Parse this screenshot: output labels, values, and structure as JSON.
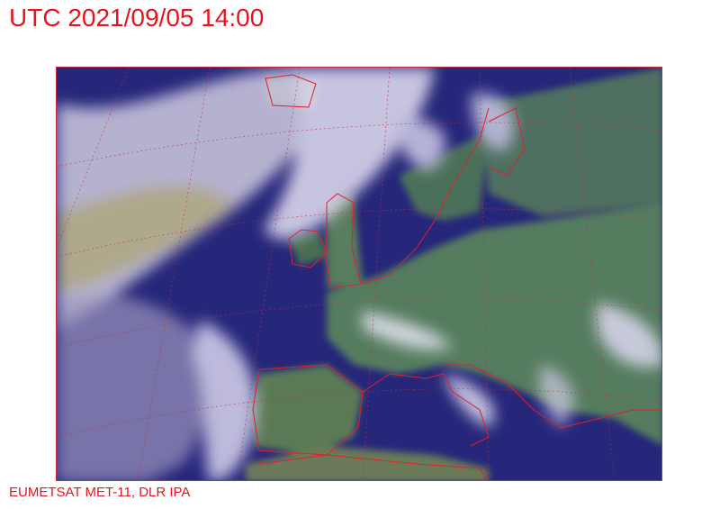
{
  "header": {
    "title": "UTC 2021/09/05 14:00"
  },
  "footer": {
    "credit": "EUMETSAT MET-11, DLR IPA"
  },
  "map": {
    "kind": "satellite-composite",
    "region": "Europe and North Atlantic",
    "colors": {
      "ocean": "#25257a",
      "land": "#4f7a5c",
      "cloud": "#d8d4ec",
      "borders": "#e0202c",
      "graticule": "#c03040"
    }
  }
}
